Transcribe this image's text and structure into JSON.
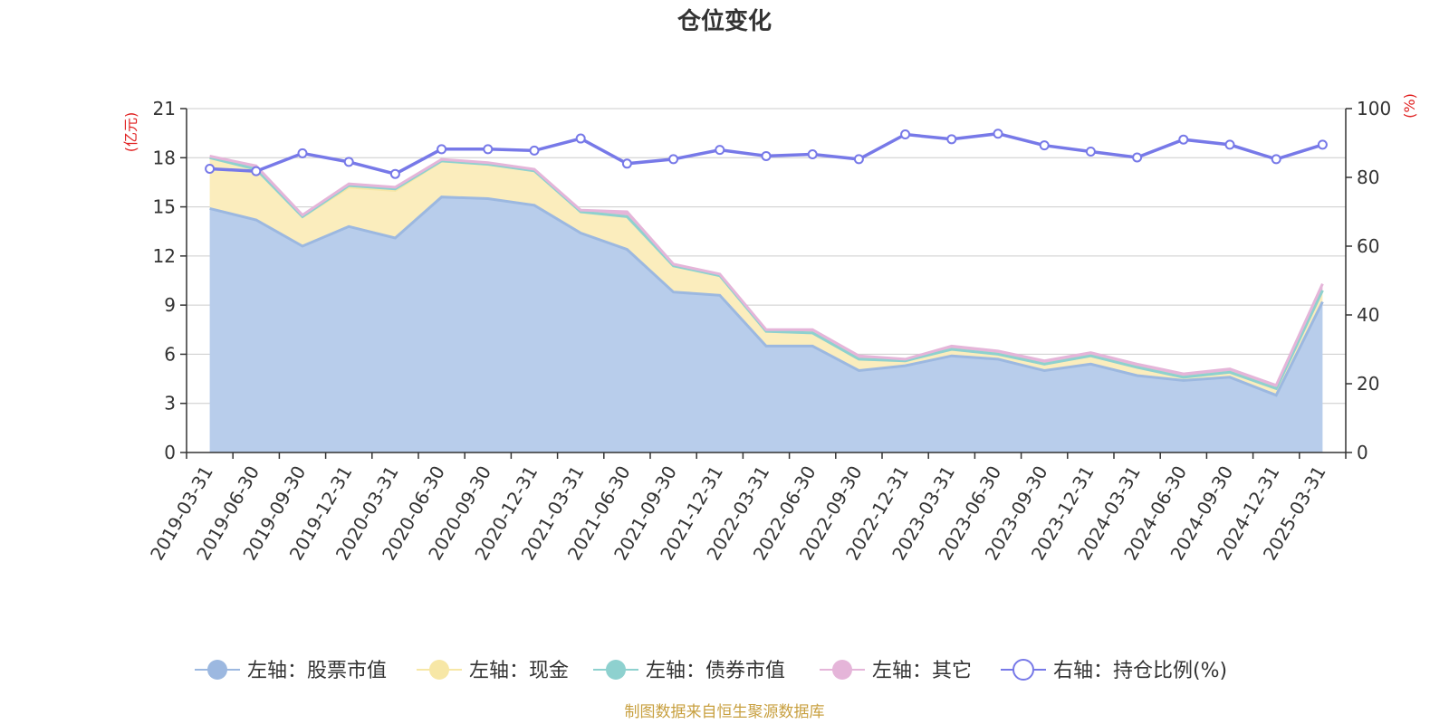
{
  "chart_data": {
    "type": "area",
    "title": "仓位变化",
    "left_unit": "(亿元)",
    "right_unit": "(%)",
    "categories": [
      "2019-03-31",
      "2019-06-30",
      "2019-09-30",
      "2019-12-31",
      "2020-03-31",
      "2020-06-30",
      "2020-09-30",
      "2020-12-31",
      "2021-03-31",
      "2021-06-30",
      "2021-09-30",
      "2021-12-31",
      "2022-03-31",
      "2022-06-30",
      "2022-09-30",
      "2022-12-31",
      "2023-03-31",
      "2023-06-30",
      "2023-09-30",
      "2023-12-31",
      "2024-03-31",
      "2024-06-30",
      "2024-09-30",
      "2024-12-31",
      "2025-03-31"
    ],
    "left_ylim": [
      0,
      21
    ],
    "left_ticks": [
      "0",
      "3",
      "6",
      "9",
      "12",
      "15",
      "18",
      "21"
    ],
    "right_ylim": [
      0,
      100
    ],
    "right_ticks": [
      "0",
      "20",
      "40",
      "60",
      "80",
      "100"
    ],
    "series": [
      {
        "name": "左轴：股票市值",
        "axis": "left",
        "color": "#9cb8e0",
        "fill": "#b8cdeb",
        "values": [
          14.9,
          14.2,
          12.6,
          13.8,
          13.1,
          15.6,
          15.5,
          15.1,
          13.4,
          12.4,
          9.8,
          9.6,
          6.5,
          6.5,
          5.0,
          5.3,
          5.9,
          5.7,
          5.0,
          5.4,
          4.7,
          4.4,
          4.6,
          3.5,
          9.2
        ]
      },
      {
        "name": "左轴：现金",
        "axis": "left",
        "color": "#f7e7a6",
        "fill": "#fbedbd",
        "values": [
          3.1,
          3.1,
          1.8,
          2.4,
          2.9,
          2.2,
          2.1,
          2.1,
          1.3,
          2.0,
          1.6,
          1.2,
          0.9,
          0.8,
          0.7,
          0.3,
          0.4,
          0.3,
          0.4,
          0.5,
          0.5,
          0.2,
          0.3,
          0.4,
          0.7
        ]
      },
      {
        "name": "左轴：债券市值",
        "axis": "left",
        "color": "#8ed1cf",
        "fill": "#a9dfdd",
        "values": [
          0,
          0,
          0,
          0.1,
          0.1,
          0,
          0,
          0,
          0,
          0,
          0,
          0,
          0,
          0,
          0,
          0,
          0,
          0,
          0,
          0,
          0,
          0,
          0,
          0,
          0
        ]
      },
      {
        "name": "左轴：其它",
        "axis": "left",
        "color": "#e5b5d9",
        "fill": "#e5b5d9",
        "values": [
          0.1,
          0.2,
          0.1,
          0.1,
          0.1,
          0.1,
          0.1,
          0.1,
          0.1,
          0.3,
          0.1,
          0.1,
          0.1,
          0.2,
          0.2,
          0.1,
          0.2,
          0.2,
          0.2,
          0.2,
          0.2,
          0.2,
          0.2,
          0.2,
          0.4
        ]
      },
      {
        "name": "右轴：持仓比例(%)",
        "axis": "right",
        "color": "#7779e8",
        "values": [
          82.5,
          81.8,
          87,
          84.5,
          81,
          88.2,
          88.2,
          87.8,
          91.3,
          84,
          85.3,
          88,
          86.2,
          86.7,
          85.3,
          92.5,
          91.1,
          92.7,
          89.3,
          87.5,
          85.8,
          91,
          89.5,
          85.3,
          89.5
        ]
      }
    ],
    "source_note": "制图数据来自恒生聚源数据库"
  }
}
